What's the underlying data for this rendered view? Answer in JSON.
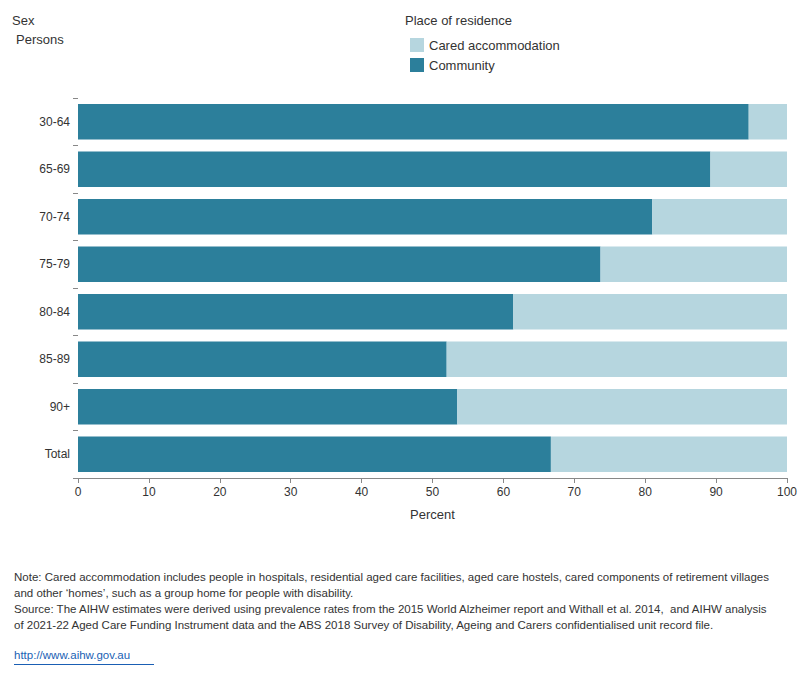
{
  "chart_data": {
    "type": "bar",
    "orientation": "horizontal",
    "stacked": true,
    "grid": false,
    "filter": {
      "label": "Sex",
      "value": "Persons"
    },
    "legend_title": "Place of residence",
    "x_label": "Percent",
    "categories": [
      "30-64",
      "65-69",
      "70-74",
      "75-79",
      "80-84",
      "85-89",
      "90+",
      "Total"
    ],
    "series": [
      {
        "name": "Community",
        "color": "#2c7f9b",
        "values": [
          94.6,
          89.2,
          81.0,
          73.7,
          61.4,
          52.0,
          53.5,
          66.7
        ]
      },
      {
        "name": "Cared accommodation",
        "color": "#b6d6df",
        "values": [
          5.4,
          10.8,
          19.0,
          26.3,
          38.6,
          48.0,
          46.5,
          33.3
        ]
      }
    ],
    "xlim": [
      0,
      100
    ],
    "xticks": [
      0,
      10,
      20,
      30,
      40,
      50,
      60,
      70,
      80,
      90,
      100
    ],
    "note": "Note: Cared accommodation includes people in hospitals, residential aged care facilities, aged care hostels, cared components of retirement villages and other ‘homes’, such as a group home for people with disability.",
    "source": "Source: The AIHW estimates were derived using prevalence rates from the 2015 World Alzheimer report and Withall et al. 2014,  and AIHW analysis of 2021-22 Aged Care Funding Instrument data and the ABS 2018 Survey of Disability, Ageing and Carers confidentialised unit record file.",
    "link": "http://www.aihw.gov.au"
  }
}
